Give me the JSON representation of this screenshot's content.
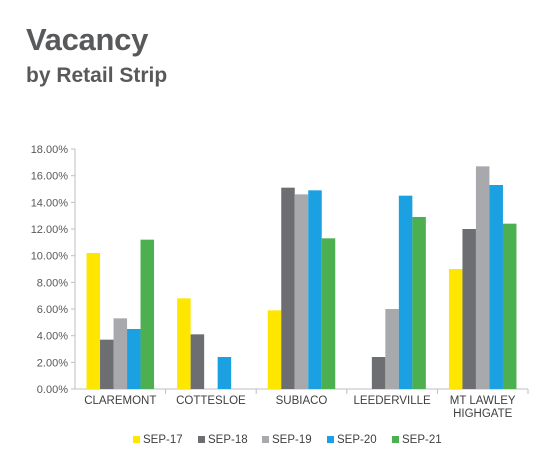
{
  "header": {
    "title": "Vacancy",
    "subtitle": "by Retail Strip"
  },
  "chart_data": {
    "type": "bar",
    "title": "Vacancy",
    "subtitle": "by Retail Strip",
    "categories": [
      [
        "CLAREMONT"
      ],
      [
        "COTTESLOE"
      ],
      [
        "SUBIACO"
      ],
      [
        "LEEDERVILLE"
      ],
      [
        "MT LAWLEY",
        "HIGHGATE"
      ]
    ],
    "series": [
      {
        "name": "SEP-17",
        "color": "#ffe600",
        "values": [
          10.2,
          6.8,
          5.9,
          null,
          9.0
        ]
      },
      {
        "name": "SEP-18",
        "color": "#6d6e71",
        "values": [
          3.7,
          4.1,
          15.1,
          2.4,
          12.0
        ]
      },
      {
        "name": "SEP-19",
        "color": "#a7a9ac",
        "values": [
          5.3,
          null,
          14.6,
          6.0,
          16.7
        ]
      },
      {
        "name": "SEP-20",
        "color": "#1ba1e2",
        "values": [
          4.5,
          2.4,
          14.9,
          14.5,
          15.3
        ]
      },
      {
        "name": "SEP-21",
        "color": "#4caf50",
        "values": [
          11.2,
          null,
          11.3,
          12.9,
          12.4
        ]
      }
    ],
    "y_ticks": [
      "0.00%",
      "2.00%",
      "4.00%",
      "6.00%",
      "8.00%",
      "10.00%",
      "12.00%",
      "14.00%",
      "16.00%",
      "18.00%"
    ],
    "ylim": [
      0,
      18
    ],
    "xlabel": "",
    "ylabel": "",
    "grid": false,
    "legend": "bottom"
  }
}
